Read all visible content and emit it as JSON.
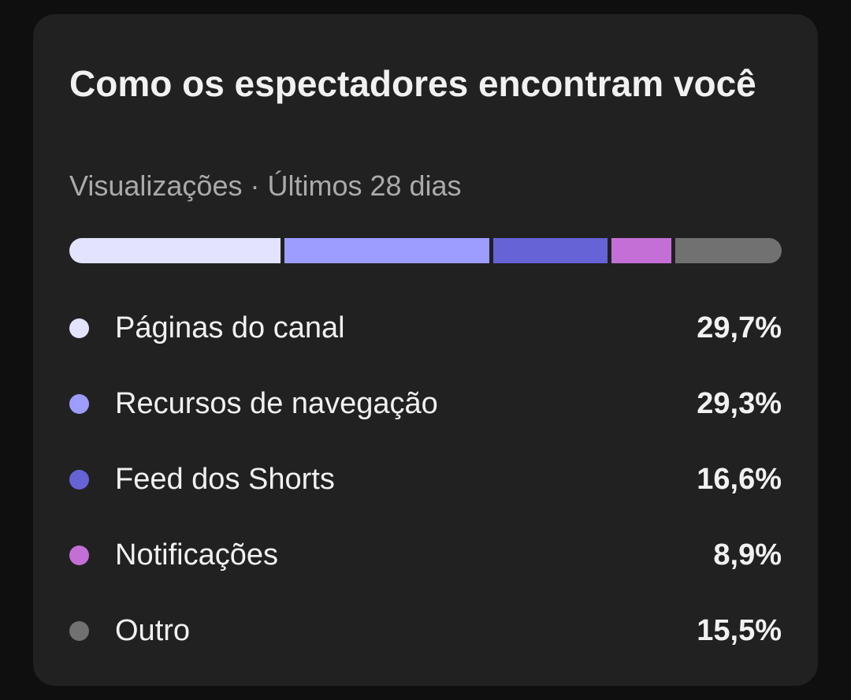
{
  "card": {
    "title": "Como os espectadores encontram você",
    "subtitle": "Visualizações · Últimos 28 dias"
  },
  "sources": [
    {
      "label": "Páginas do canal",
      "value": "29,7%",
      "percent": 29.7,
      "color": "#e3e3ff"
    },
    {
      "label": "Recursos de navegação",
      "value": "29,3%",
      "percent": 29.3,
      "color": "#9d9cff"
    },
    {
      "label": "Feed dos Shorts",
      "value": "16,6%",
      "percent": 16.6,
      "color": "#6663d6"
    },
    {
      "label": "Notificações",
      "value": "8,9%",
      "percent": 8.9,
      "color": "#c46fd6"
    },
    {
      "label": "Outro",
      "value": "15,5%",
      "percent": 15.5,
      "color": "#717171"
    }
  ]
}
